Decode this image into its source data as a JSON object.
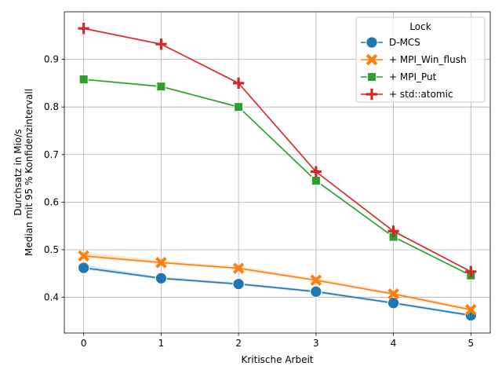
{
  "chart_data": {
    "type": "line",
    "xlabel": "Kritische Arbeit",
    "ylabel_lines": [
      "Durchsatz in Mio/s",
      "Median mit 95 % Konfidenzintervall"
    ],
    "x": [
      0,
      1,
      2,
      3,
      4,
      5
    ],
    "xlim": [
      -0.25,
      5.25
    ],
    "ylim": [
      0.325,
      1.0
    ],
    "xticks": [
      "0",
      "1",
      "2",
      "3",
      "4",
      "5"
    ],
    "yticks": [
      "0.4",
      "0.5",
      "0.6",
      "0.7",
      "0.8",
      "0.9"
    ],
    "grid": true,
    "legend": {
      "title": "Lock",
      "placement": "top-right"
    },
    "series": [
      {
        "name": "D-MCS",
        "color": "#1f77b4",
        "marker": "circle",
        "values": [
          0.462,
          0.44,
          0.428,
          0.412,
          0.388,
          0.362
        ],
        "ci_low": [
          0.458,
          0.437,
          0.425,
          0.409,
          0.385,
          0.359
        ],
        "ci_high": [
          0.468,
          0.443,
          0.431,
          0.415,
          0.391,
          0.365
        ]
      },
      {
        "name": "+ MPI_Win_flush",
        "color": "#ff7f0e",
        "marker": "x",
        "values": [
          0.487,
          0.473,
          0.461,
          0.436,
          0.407,
          0.374
        ],
        "ci_low": [
          0.483,
          0.47,
          0.458,
          0.433,
          0.404,
          0.371
        ],
        "ci_high": [
          0.495,
          0.477,
          0.465,
          0.44,
          0.411,
          0.378
        ]
      },
      {
        "name": "+ MPI_Put",
        "color": "#2ca02c",
        "marker": "square",
        "values": [
          0.858,
          0.843,
          0.8,
          0.645,
          0.527,
          0.446
        ],
        "ci_low": [
          0.856,
          0.841,
          0.798,
          0.643,
          0.525,
          0.444
        ],
        "ci_high": [
          0.86,
          0.845,
          0.802,
          0.647,
          0.529,
          0.448
        ]
      },
      {
        "name": "+ std::atomic",
        "color": "#d62728",
        "marker": "plus",
        "values": [
          0.965,
          0.932,
          0.85,
          0.664,
          0.539,
          0.454
        ],
        "ci_low": [
          0.963,
          0.93,
          0.848,
          0.662,
          0.537,
          0.452
        ],
        "ci_high": [
          0.967,
          0.934,
          0.852,
          0.666,
          0.541,
          0.456
        ]
      }
    ]
  }
}
